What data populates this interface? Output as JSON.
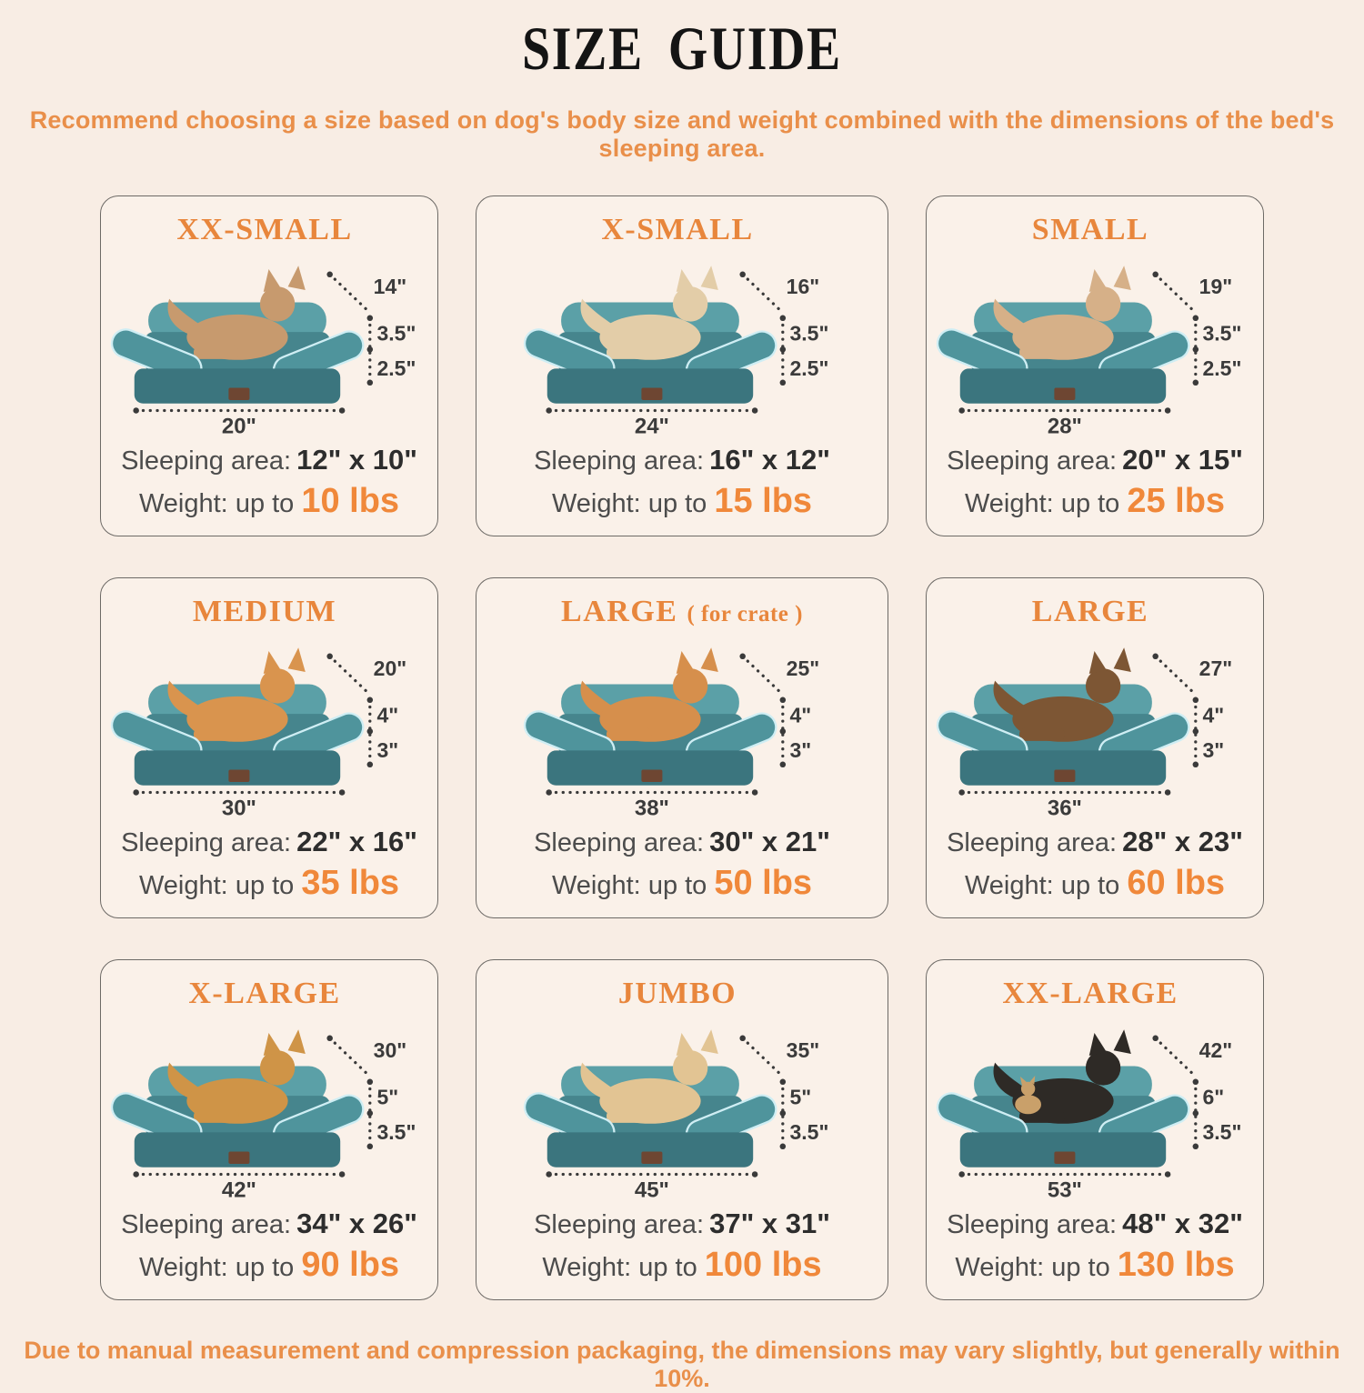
{
  "page": {
    "title": "SIZE GUIDE",
    "subtitle": "Recommend choosing a size based on dog's body size and weight combined with the dimensions of the bed's sleeping area.",
    "footer": "Due to manual measurement and compression packaging, the dimensions may vary slightly, but generally within 10%.",
    "colors": {
      "background": "#f8ede4",
      "card_background": "#faf1e9",
      "card_border": "#6d6a66",
      "accent_orange": "#e8863c",
      "weight_orange": "#f0883a",
      "text_dark": "#3b3b3b",
      "bed_bolster": "#5ba0a7",
      "bed_arm": "#4f949c",
      "bed_surface": "#46858d",
      "bed_base": "#3b757e",
      "bed_piping": "#cfeef4",
      "bed_tag": "#6e4632"
    }
  },
  "cards": [
    {
      "title": "XX-SMALL",
      "title_note": "",
      "pet": "cat",
      "pet_color": "#c79a6e",
      "diag_dim": "14\"",
      "upper_dim": "3.5\"",
      "lower_dim": "2.5\"",
      "width_dim": "20\"",
      "sleeping_label": "Sleeping area:",
      "sleeping_value": "12\" x 10\"",
      "weight_label": "Weight:",
      "weight_prefix": "up to",
      "weight_value": "10 lbs"
    },
    {
      "title": "X-SMALL",
      "title_note": "",
      "pet": "shih-tzu",
      "pet_color": "#e3cda8",
      "diag_dim": "16\"",
      "upper_dim": "3.5\"",
      "lower_dim": "2.5\"",
      "width_dim": "24\"",
      "sleeping_label": "Sleeping area:",
      "sleeping_value": "16\" x 12\"",
      "weight_label": "Weight:",
      "weight_prefix": "up to",
      "weight_value": "15 lbs"
    },
    {
      "title": "SMALL",
      "title_note": "",
      "pet": "french-bulldog",
      "pet_color": "#d6b088",
      "diag_dim": "19\"",
      "upper_dim": "3.5\"",
      "lower_dim": "2.5\"",
      "width_dim": "28\"",
      "sleeping_label": "Sleeping area:",
      "sleeping_value": "20\" x 15\"",
      "weight_label": "Weight:",
      "weight_prefix": "up to",
      "weight_value": "25 lbs"
    },
    {
      "title": "MEDIUM",
      "title_note": "",
      "pet": "corgi",
      "pet_color": "#d9944e",
      "diag_dim": "20\"",
      "upper_dim": "4\"",
      "lower_dim": "3\"",
      "width_dim": "30\"",
      "sleeping_label": "Sleeping area:",
      "sleeping_value": "22\" x 16\"",
      "weight_label": "Weight:",
      "weight_prefix": "up to",
      "weight_value": "35 lbs"
    },
    {
      "title": "LARGE",
      "title_note": "( for crate )",
      "pet": "shiba-inu",
      "pet_color": "#d68f4c",
      "diag_dim": "25\"",
      "upper_dim": "4\"",
      "lower_dim": "3\"",
      "width_dim": "38\"",
      "sleeping_label": "Sleeping area:",
      "sleeping_value": "30\" x 21\"",
      "weight_label": "Weight:",
      "weight_prefix": "up to",
      "weight_value": "50 lbs"
    },
    {
      "title": "LARGE",
      "title_note": "",
      "pet": "border-collie",
      "pet_color": "#7d5634",
      "diag_dim": "27\"",
      "upper_dim": "4\"",
      "lower_dim": "3\"",
      "width_dim": "36\"",
      "sleeping_label": "Sleeping area:",
      "sleeping_value": "28\" x 23\"",
      "weight_label": "Weight:",
      "weight_prefix": "up to",
      "weight_value": "60 lbs"
    },
    {
      "title": "X-LARGE",
      "title_note": "",
      "pet": "golden-retriever",
      "pet_color": "#cf9447",
      "diag_dim": "30\"",
      "upper_dim": "5\"",
      "lower_dim": "3.5\"",
      "width_dim": "42\"",
      "sleeping_label": "Sleeping area:",
      "sleeping_value": "34\" x 26\"",
      "weight_label": "Weight:",
      "weight_prefix": "up to",
      "weight_value": "90 lbs"
    },
    {
      "title": "JUMBO",
      "title_note": "",
      "pet": "labrador",
      "pet_color": "#e2c493",
      "diag_dim": "35\"",
      "upper_dim": "5\"",
      "lower_dim": "3.5\"",
      "width_dim": "45\"",
      "sleeping_label": "Sleeping area:",
      "sleeping_value": "37\" x 31\"",
      "weight_label": "Weight:",
      "weight_prefix": "up to",
      "weight_value": "100 lbs"
    },
    {
      "title": "XX-LARGE",
      "title_note": "",
      "pet": "rottweiler-with-chihuahua",
      "pet_color": "#2e2a26",
      "pet2_color": "#c9a06a",
      "diag_dim": "42\"",
      "upper_dim": "6\"",
      "lower_dim": "3.5\"",
      "width_dim": "53\"",
      "sleeping_label": "Sleeping area:",
      "sleeping_value": "48\" x 32\"",
      "weight_label": "Weight:",
      "weight_prefix": "up to",
      "weight_value": "130 lbs"
    }
  ]
}
